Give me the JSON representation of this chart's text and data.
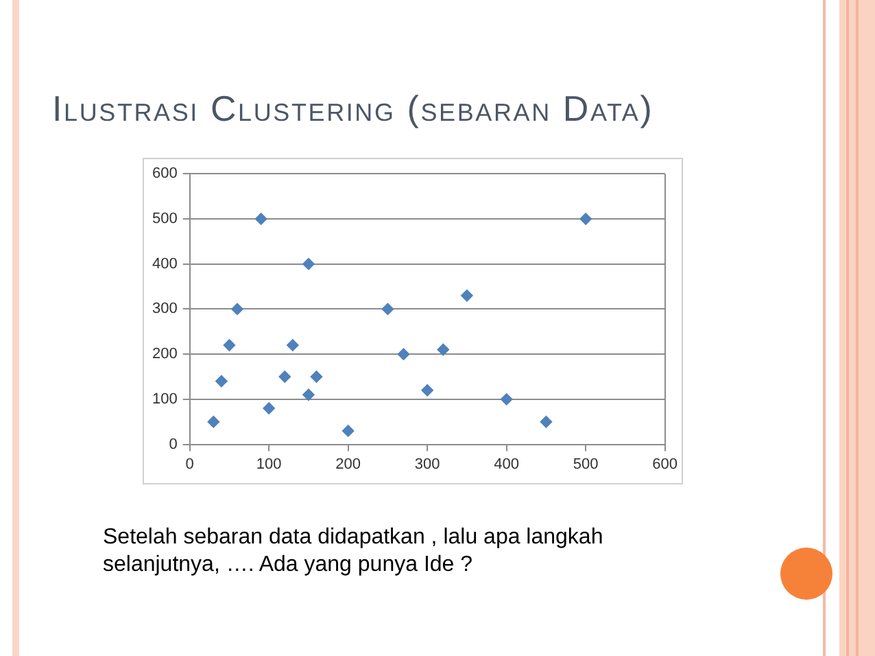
{
  "chart_data": {
    "type": "scatter",
    "title": "Ilustrasi Clustering (sebaran Data)",
    "annotations": [
      "Setelah sebaran data didapatkan , lalu apa langkah selanjutnya, …. Ada yang punya Ide ?"
    ],
    "x": [
      30,
      40,
      50,
      60,
      90,
      100,
      120,
      130,
      150,
      150,
      160,
      200,
      250,
      270,
      300,
      320,
      350,
      400,
      450,
      500
    ],
    "series": [
      {
        "color": "#4f81bd",
        "values": [
          50,
          140,
          220,
          300,
          500,
          80,
          150,
          220,
          400,
          110,
          150,
          30,
          300,
          200,
          120,
          210,
          330,
          100,
          50,
          500
        ]
      }
    ],
    "xlim": [
      0,
      600
    ],
    "xticks": [
      0,
      100,
      200,
      300,
      400,
      500,
      600
    ],
    "ylim": [
      0,
      600
    ],
    "yticks": [
      0,
      100,
      200,
      300,
      400,
      500,
      600
    ],
    "grid": "y",
    "marker": "diamond"
  }
}
